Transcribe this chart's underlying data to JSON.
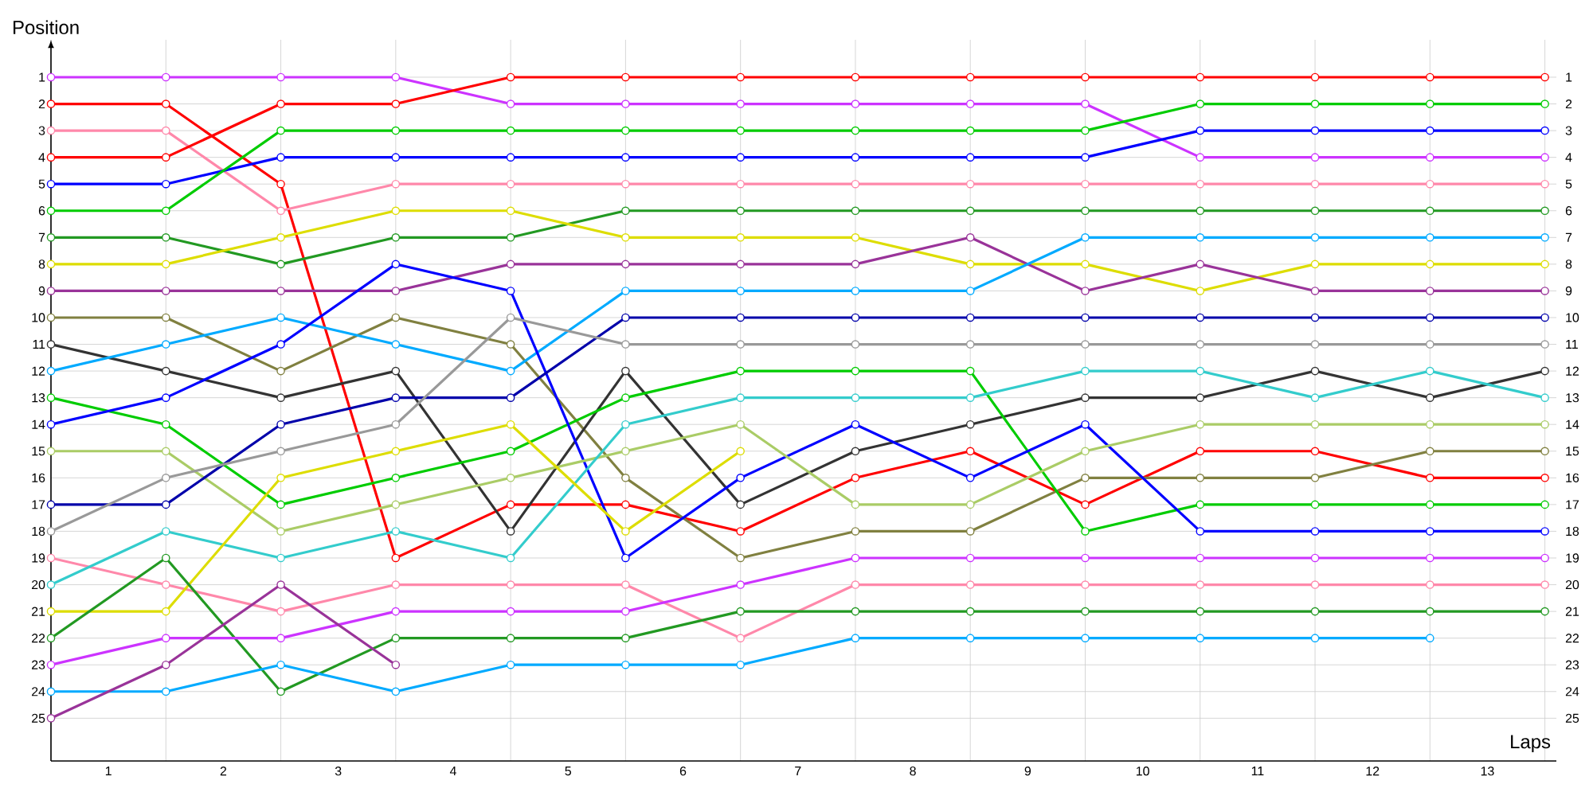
{
  "chart_data": {
    "type": "line",
    "xlabel": "Laps",
    "ylabel": "Position",
    "x": [
      0,
      1,
      2,
      3,
      4,
      5,
      6,
      7,
      8,
      9,
      10,
      11,
      12,
      13
    ],
    "series": [
      {
        "color": "#cc33ff",
        "values": [
          1,
          1,
          1,
          1,
          2,
          2,
          2,
          2,
          2,
          2,
          4,
          4,
          4,
          4
        ]
      },
      {
        "color": "#ff0000",
        "values": [
          2,
          2,
          5,
          19,
          17,
          17,
          18,
          16,
          15,
          17,
          15,
          15,
          16,
          16
        ]
      },
      {
        "color": "#ff88aa",
        "values": [
          3,
          3,
          6,
          5,
          5,
          5,
          5,
          5,
          5,
          5,
          5,
          5,
          5,
          5
        ]
      },
      {
        "color": "#ff0000",
        "values": [
          4,
          4,
          2,
          2,
          1,
          1,
          1,
          1,
          1,
          1,
          1,
          1,
          1,
          1
        ]
      },
      {
        "color": "#0000ff",
        "values": [
          5,
          5,
          4,
          4,
          4,
          4,
          4,
          4,
          4,
          4,
          3,
          3,
          3,
          3
        ]
      },
      {
        "color": "#00cc00",
        "values": [
          6,
          6,
          3,
          3,
          3,
          3,
          3,
          3,
          3,
          3,
          2,
          2,
          2,
          2
        ]
      },
      {
        "color": "#229922",
        "values": [
          7,
          7,
          8,
          7,
          7,
          6,
          6,
          6,
          6,
          6,
          6,
          6,
          6,
          6
        ]
      },
      {
        "color": "#dddd00",
        "values": [
          8,
          8,
          7,
          6,
          6,
          7,
          7,
          7,
          8,
          8,
          9,
          8,
          8,
          8
        ]
      },
      {
        "color": "#993399",
        "values": [
          9,
          9,
          9,
          9,
          8,
          8,
          8,
          8,
          7,
          9,
          8,
          9,
          9,
          9
        ]
      },
      {
        "color": "#808040",
        "values": [
          10,
          10,
          12,
          10,
          11,
          16,
          19,
          18,
          18,
          16,
          16,
          16,
          15,
          15
        ]
      },
      {
        "color": "#333333",
        "values": [
          11,
          12,
          13,
          12,
          18,
          12,
          17,
          15,
          14,
          13,
          13,
          12,
          13,
          12
        ]
      },
      {
        "color": "#00aaff",
        "values": [
          12,
          11,
          10,
          11,
          12,
          9,
          9,
          9,
          9,
          7,
          7,
          7,
          7,
          7
        ]
      },
      {
        "color": "#00cc00",
        "values": [
          13,
          14,
          17,
          16,
          15,
          13,
          12,
          12,
          12,
          18,
          17,
          17,
          17,
          17
        ]
      },
      {
        "color": "#0000ff",
        "values": [
          14,
          13,
          11,
          8,
          9,
          19,
          16,
          14,
          16,
          14,
          18,
          18,
          18,
          18
        ]
      },
      {
        "color": "#aacc66",
        "values": [
          15,
          15,
          18,
          17,
          16,
          15,
          14,
          17,
          17,
          15,
          14,
          14,
          14,
          14
        ]
      },
      {
        "color": "#0000aa",
        "values": [
          17,
          17,
          14,
          13,
          13,
          10,
          10,
          10,
          10,
          10,
          10,
          10,
          10,
          10
        ]
      },
      {
        "color": "#999999",
        "values": [
          18,
          16,
          15,
          14,
          10,
          11,
          11,
          11,
          11,
          11,
          11,
          11,
          11,
          11
        ]
      },
      {
        "color": "#ff88aa",
        "values": [
          19,
          20,
          21,
          20,
          20,
          20,
          22,
          20,
          20,
          20,
          20,
          20,
          20,
          20
        ]
      },
      {
        "color": "#33cccc",
        "values": [
          20,
          18,
          19,
          18,
          19,
          14,
          13,
          13,
          13,
          12,
          12,
          13,
          12,
          13
        ]
      },
      {
        "color": "#dddd00",
        "values": [
          21,
          21,
          16,
          15,
          14,
          18,
          15,
          null,
          null,
          null,
          null,
          null,
          null,
          null
        ]
      },
      {
        "color": "#229922",
        "values": [
          22,
          19,
          24,
          22,
          22,
          22,
          21,
          21,
          21,
          21,
          21,
          21,
          21,
          21
        ]
      },
      {
        "color": "#cc33ff",
        "values": [
          23,
          22,
          22,
          21,
          21,
          21,
          20,
          19,
          19,
          19,
          19,
          19,
          19,
          19
        ]
      },
      {
        "color": "#00aaff",
        "values": [
          24,
          24,
          23,
          24,
          23,
          23,
          23,
          22,
          22,
          22,
          22,
          22,
          22,
          null
        ]
      },
      {
        "color": "#993399",
        "values": [
          25,
          23,
          20,
          23,
          null,
          null,
          null,
          null,
          null,
          null,
          null,
          null,
          null,
          null
        ]
      }
    ],
    "xlim": [
      0,
      13.1
    ],
    "ylim": [
      26.6,
      -0.4
    ],
    "xticks": [
      {
        "value": 0,
        "label": null
      },
      {
        "value": 1,
        "label": null
      },
      {
        "value": 2,
        "label": null
      },
      {
        "value": 3,
        "label": null
      },
      {
        "value": 4,
        "label": null
      },
      {
        "value": 5,
        "label": null
      },
      {
        "value": 6,
        "label": null
      },
      {
        "value": 7,
        "label": null
      },
      {
        "value": 8,
        "label": null
      },
      {
        "value": 9,
        "label": null
      },
      {
        "value": 10,
        "label": null
      },
      {
        "value": 11,
        "label": null
      },
      {
        "value": 12,
        "label": null
      },
      {
        "value": 13,
        "label": null
      },
      {
        "value": 0.5,
        "label": "1"
      },
      {
        "value": 1.5,
        "label": "2"
      },
      {
        "value": 2.5,
        "label": "3"
      },
      {
        "value": 3.5,
        "label": "4"
      },
      {
        "value": 4.5,
        "label": "5"
      },
      {
        "value": 5.5,
        "label": "6"
      },
      {
        "value": 6.5,
        "label": "7"
      },
      {
        "value": 7.5,
        "label": "8"
      },
      {
        "value": 8.5,
        "label": "9"
      },
      {
        "value": 9.5,
        "label": "10"
      },
      {
        "value": 10.5,
        "label": "11"
      },
      {
        "value": 11.5,
        "label": "12"
      },
      {
        "value": 12.5,
        "label": "13"
      }
    ],
    "yticks": [
      1,
      2,
      3,
      4,
      5,
      6,
      7,
      8,
      9,
      10,
      11,
      12,
      13,
      14,
      15,
      16,
      17,
      18,
      19,
      20,
      21,
      22,
      23,
      24,
      25
    ],
    "y2lim": [
      26.6,
      -0.4
    ],
    "y2ticks": [
      1,
      2,
      3,
      4,
      5,
      6,
      7,
      8,
      9,
      10,
      11,
      12,
      13,
      14,
      15,
      16,
      17,
      18,
      19,
      20,
      21,
      22,
      23,
      24,
      25
    ],
    "grid": true,
    "marker": "circle",
    "line_style": "solid"
  }
}
